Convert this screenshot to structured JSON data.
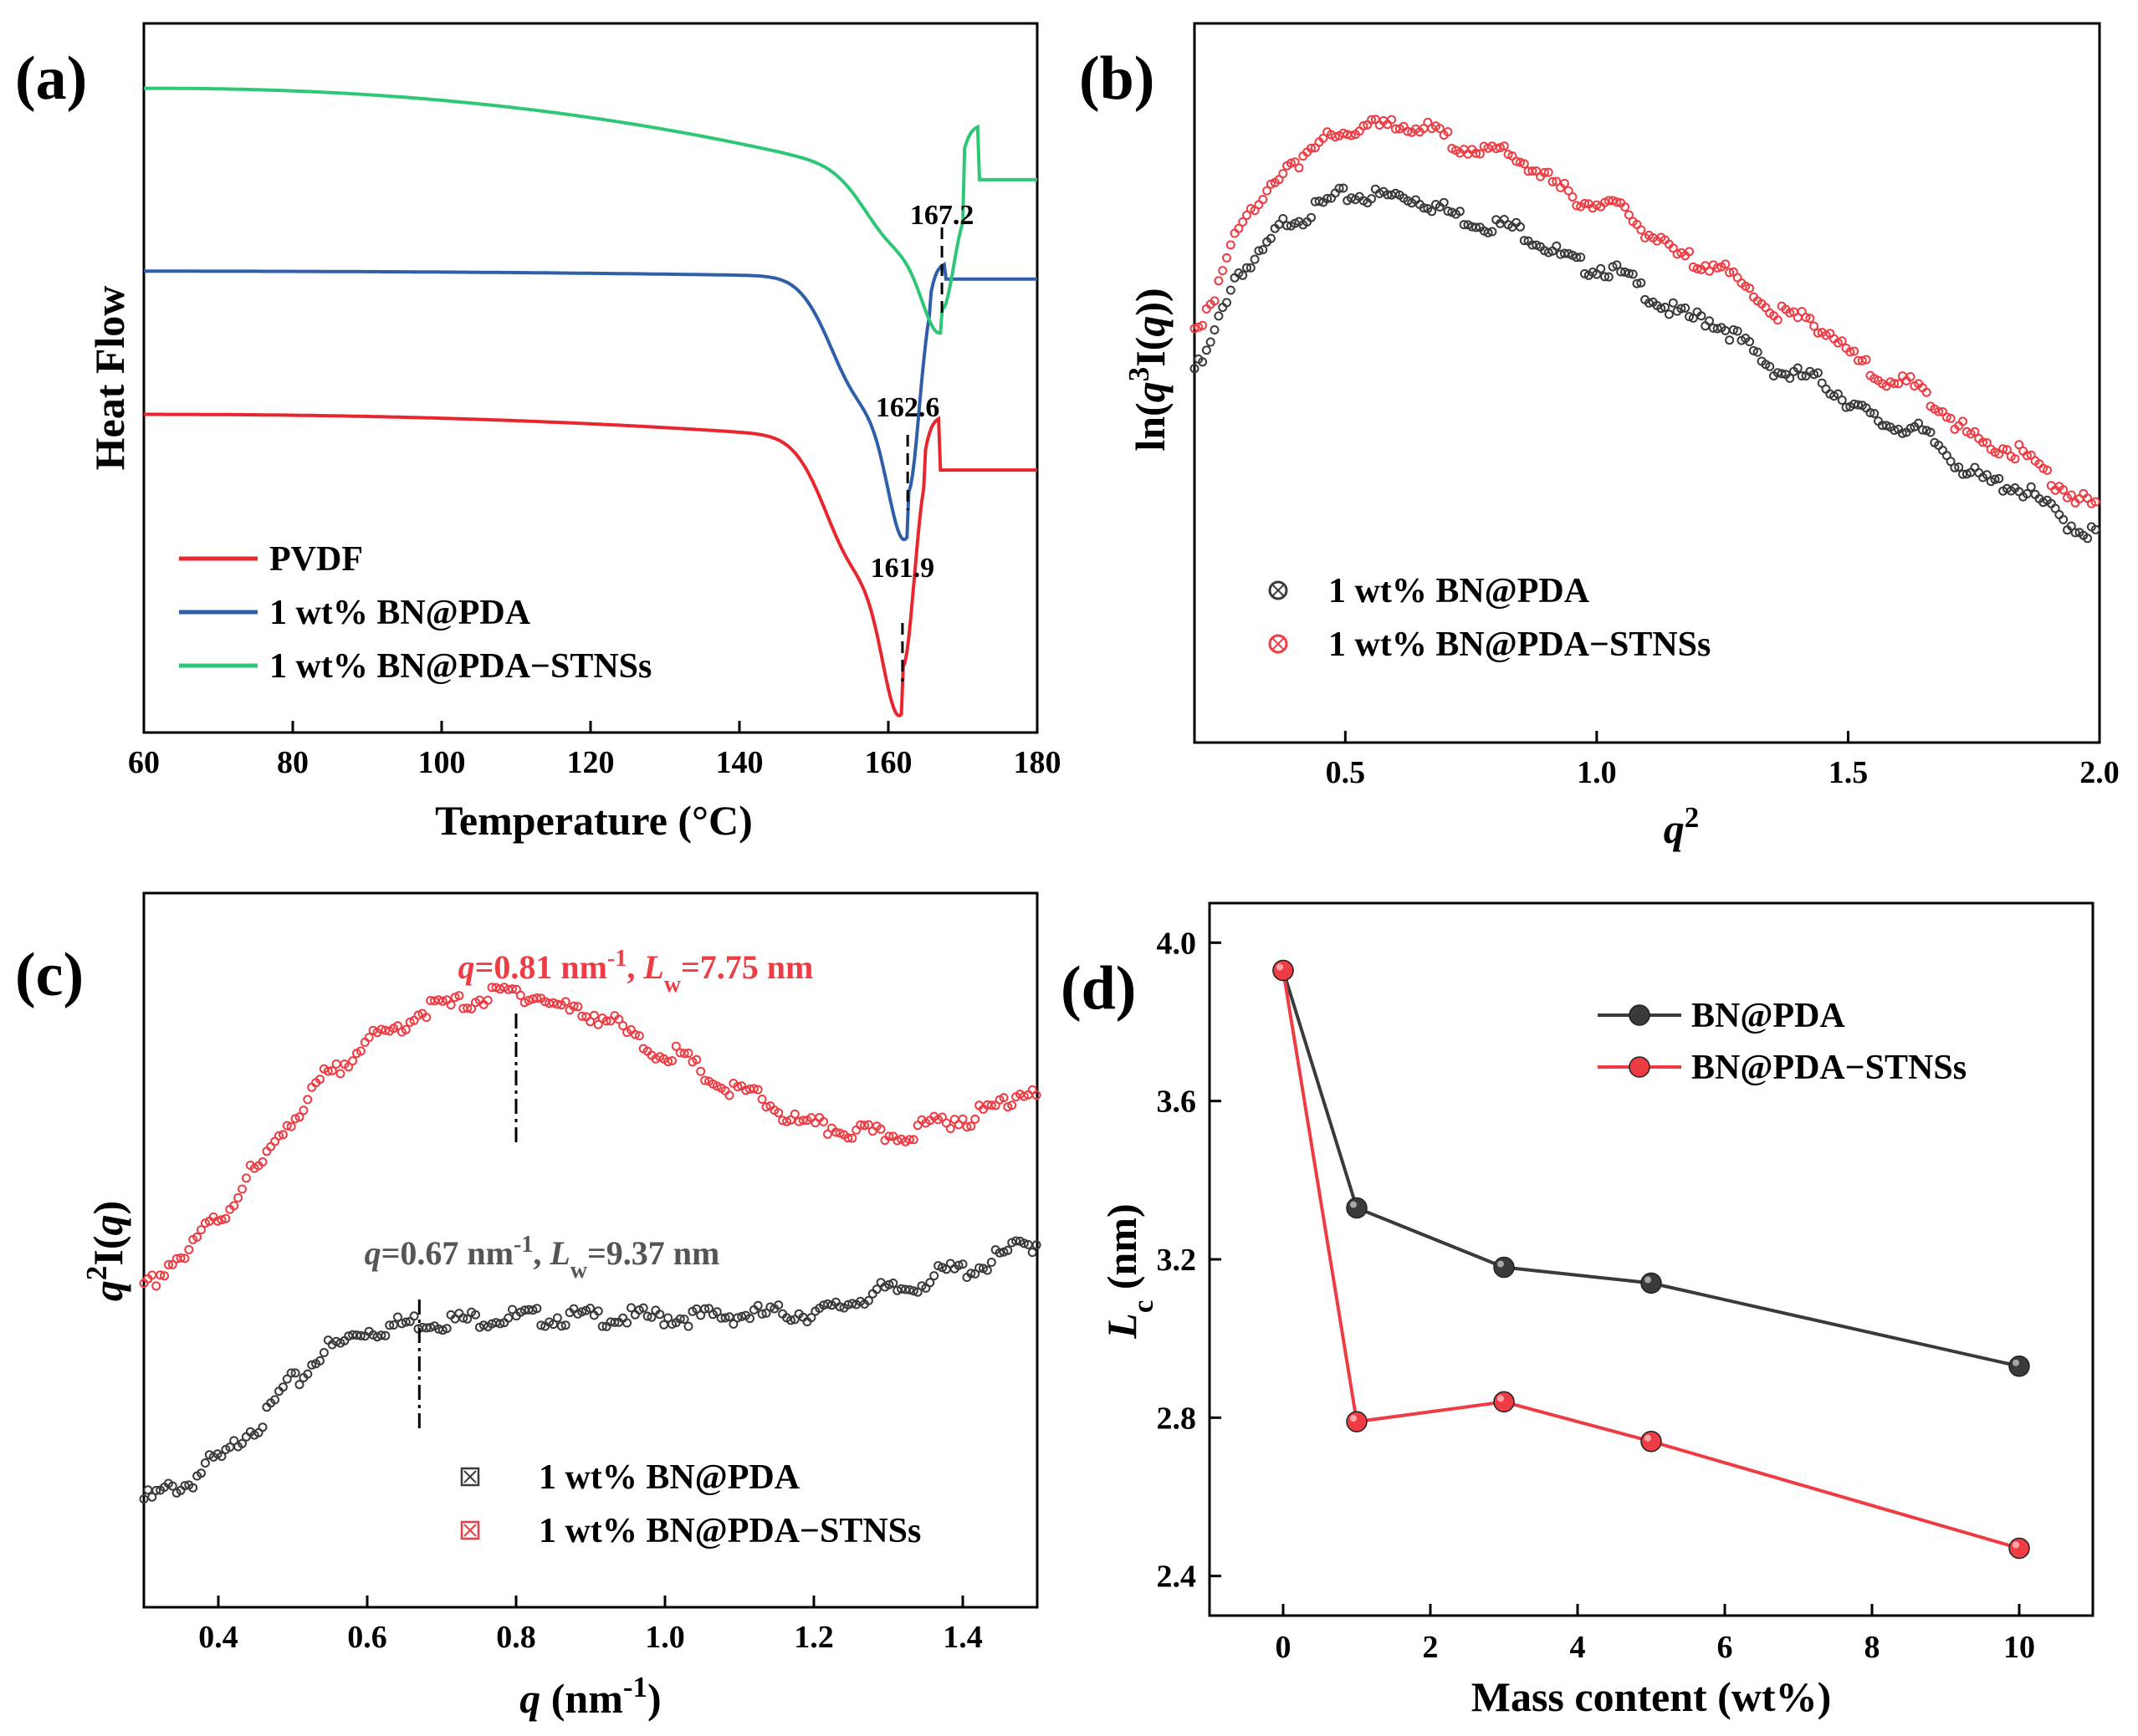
{
  "colors": {
    "pvdf": "#e8262d",
    "bnpda_blue": "#2f5fa8",
    "stnss_green": "#2fc777",
    "black_series": "#3a3a3a",
    "red_series": "#ee3c44",
    "gray_annot": "#555555"
  },
  "chart_data": [
    {
      "id": "a",
      "panel_label": "(a)",
      "type": "line",
      "xlabel": "Temperature (°C)",
      "ylabel": "Heat Flow",
      "xlim": [
        60,
        180
      ],
      "xticks": [
        60,
        80,
        100,
        120,
        140,
        160,
        180
      ],
      "legend_position": "bottom-left",
      "series": [
        {
          "name": "PVDF",
          "color": "#e8262d",
          "baseline_start": 0.0,
          "baseline_end": -0.9,
          "peak_x": 161.9,
          "peak_depth": 5.6,
          "offset": 0
        },
        {
          "name": "1 wt% BN@PDA",
          "color": "#2f5fa8",
          "baseline_start": 0.0,
          "baseline_end": -0.2,
          "peak_x": 162.6,
          "peak_depth": 5.4,
          "offset": 3.6
        },
        {
          "name": "1 wt% BN@PDA−STNSs",
          "color": "#2fc777",
          "baseline_start": 0.0,
          "baseline_end": -2.8,
          "peak_x": 167.2,
          "peak_depth": 2.9,
          "offset": 8.2
        }
      ],
      "annotations": [
        {
          "text": "161.9",
          "x": 161.9
        },
        {
          "text": "162.6",
          "x": 162.6
        },
        {
          "text": "167.2",
          "x": 167.2
        }
      ]
    },
    {
      "id": "b",
      "panel_label": "(b)",
      "type": "scatter",
      "xlabel": "q",
      "xlabel_sup": "2",
      "ylabel_parts": [
        "ln(",
        "q",
        "3",
        "I(",
        "q",
        "))"
      ],
      "xlim": [
        0.2,
        2.0
      ],
      "xticks": [
        0.5,
        1.0,
        1.5,
        2.0
      ],
      "xtick_labels": [
        "0.5",
        "1.0",
        "1.5",
        "2.0"
      ],
      "legend_position": "bottom-left",
      "series": [
        {
          "name": "1 wt% BN@PDA",
          "color": "#3a3a3a",
          "x": [
            0.2,
            0.3,
            0.4,
            0.5,
            0.6,
            0.8,
            1.0,
            1.2,
            1.4,
            1.6,
            1.8,
            2.0
          ],
          "y": [
            5.2,
            6.6,
            7.3,
            7.6,
            7.6,
            7.2,
            6.6,
            5.9,
            5.1,
            4.4,
            3.6,
            2.9
          ]
        },
        {
          "name": "1 wt% BN@PDA−STNSs",
          "color": "#ee3c44",
          "x": [
            0.2,
            0.3,
            0.4,
            0.5,
            0.6,
            0.8,
            1.0,
            1.2,
            1.4,
            1.6,
            1.8,
            2.0
          ],
          "y": [
            5.7,
            7.3,
            8.1,
            8.5,
            8.6,
            8.2,
            7.5,
            6.7,
            5.9,
            5.0,
            4.1,
            3.3
          ]
        }
      ]
    },
    {
      "id": "c",
      "panel_label": "(c)",
      "type": "scatter",
      "xlabel_parts": [
        "q",
        " (nm",
        "-1",
        ")"
      ],
      "ylabel_parts": [
        "q",
        "2",
        "I(",
        "q",
        ")"
      ],
      "xlim": [
        0.3,
        1.5
      ],
      "xticks": [
        0.4,
        0.6,
        0.8,
        1.0,
        1.2,
        1.4
      ],
      "xtick_labels": [
        "0.4",
        "0.6",
        "0.8",
        "1.0",
        "1.2",
        "1.4"
      ],
      "legend_position": "bottom-right",
      "series": [
        {
          "name": "1 wt% BN@PDA",
          "color": "#3a3a3a",
          "x": [
            0.3,
            0.35,
            0.4,
            0.45,
            0.5,
            0.55,
            0.6,
            0.67,
            0.8,
            1.0,
            1.2,
            1.3,
            1.4,
            1.5
          ],
          "y": [
            1.0,
            1.3,
            1.9,
            2.7,
            3.7,
            4.5,
            4.9,
            5.1,
            5.2,
            5.2,
            5.3,
            5.8,
            6.3,
            6.9
          ]
        },
        {
          "name": "1 wt% BN@PDA−STNSs",
          "color": "#ee3c44",
          "x": [
            0.3,
            0.35,
            0.4,
            0.45,
            0.5,
            0.55,
            0.6,
            0.7,
            0.8,
            0.9,
            1.0,
            1.1,
            1.2,
            1.3,
            1.4,
            1.5
          ],
          "y": [
            5.9,
            6.6,
            7.5,
            8.6,
            9.8,
            10.8,
            11.6,
            12.4,
            12.7,
            12.2,
            11.3,
            10.4,
            9.6,
            9.4,
            9.8,
            10.5
          ]
        }
      ],
      "annotations": [
        {
          "parts": [
            "q",
            "=0.81 nm",
            "-1",
            ", ",
            "L",
            "w",
            "=7.75 nm"
          ],
          "x": 0.81,
          "color": "#ee3c44"
        },
        {
          "parts": [
            "q",
            "=0.67 nm",
            "-1",
            ", ",
            "L",
            "w",
            "=9.37 nm"
          ],
          "x": 0.67,
          "color": "#555555"
        }
      ]
    },
    {
      "id": "d",
      "panel_label": "(d)",
      "type": "line",
      "xlabel": "Mass content (wt%)",
      "ylabel_parts": [
        "L",
        "c",
        " (nm)"
      ],
      "xlim": [
        -1,
        11
      ],
      "ylim": [
        2.3,
        4.1
      ],
      "xticks": [
        0,
        2,
        4,
        6,
        8,
        10
      ],
      "yticks": [
        2.4,
        2.8,
        3.2,
        3.6,
        4.0
      ],
      "ytick_labels": [
        "2.4",
        "2.8",
        "3.2",
        "3.6",
        "4.0"
      ],
      "legend_position": "top-right",
      "series": [
        {
          "name": "BN@PDA",
          "color": "#3a3a3a",
          "x": [
            0,
            1,
            3,
            5,
            10
          ],
          "y": [
            3.93,
            3.33,
            3.18,
            3.14,
            2.93
          ]
        },
        {
          "name": "BN@PDA−STNSs",
          "color": "#ee3c44",
          "x": [
            0,
            1,
            3,
            5,
            10
          ],
          "y": [
            3.93,
            2.79,
            2.84,
            2.74,
            2.47
          ]
        }
      ]
    }
  ]
}
